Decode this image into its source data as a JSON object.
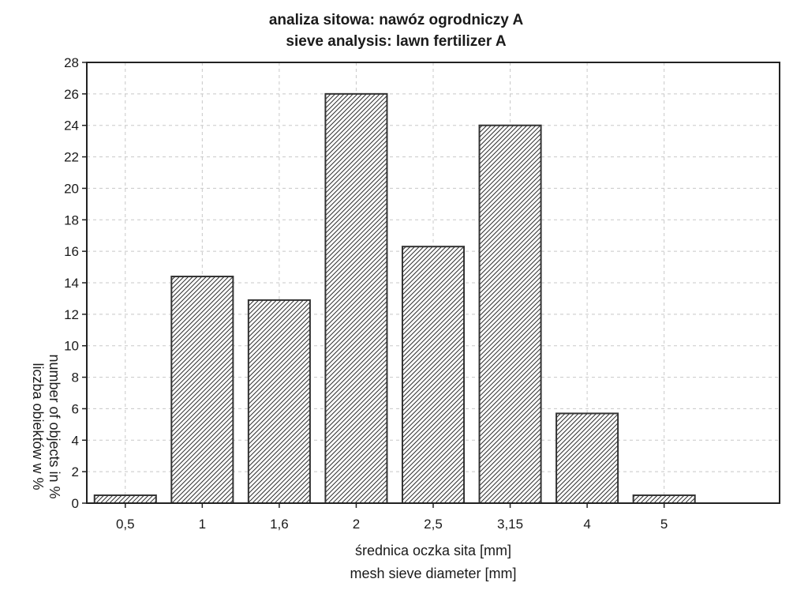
{
  "chart_data": {
    "type": "bar",
    "title_lines": [
      "analiza sitowa: nawóz ogrodniczy A",
      "sieve analysis: lawn fertilizer A"
    ],
    "xlabel_lines": [
      "średnica oczka sita [mm]",
      "mesh sieve diameter [mm]"
    ],
    "ylabel_lines": [
      "liczba obiektów w %",
      "number of objects in %"
    ],
    "categories": [
      "0,5",
      "1",
      "1,6",
      "2",
      "2,5",
      "3,15",
      "4",
      "5"
    ],
    "values": [
      0.5,
      14.4,
      12.9,
      26.0,
      16.3,
      24.0,
      5.7,
      0.5
    ],
    "ylim": [
      0,
      28
    ],
    "yticks": [
      0,
      2,
      4,
      6,
      8,
      10,
      12,
      14,
      16,
      18,
      20,
      22,
      24,
      26,
      28
    ],
    "grid": true,
    "legend": "none",
    "bar_pattern": "diagonal-hatch"
  }
}
